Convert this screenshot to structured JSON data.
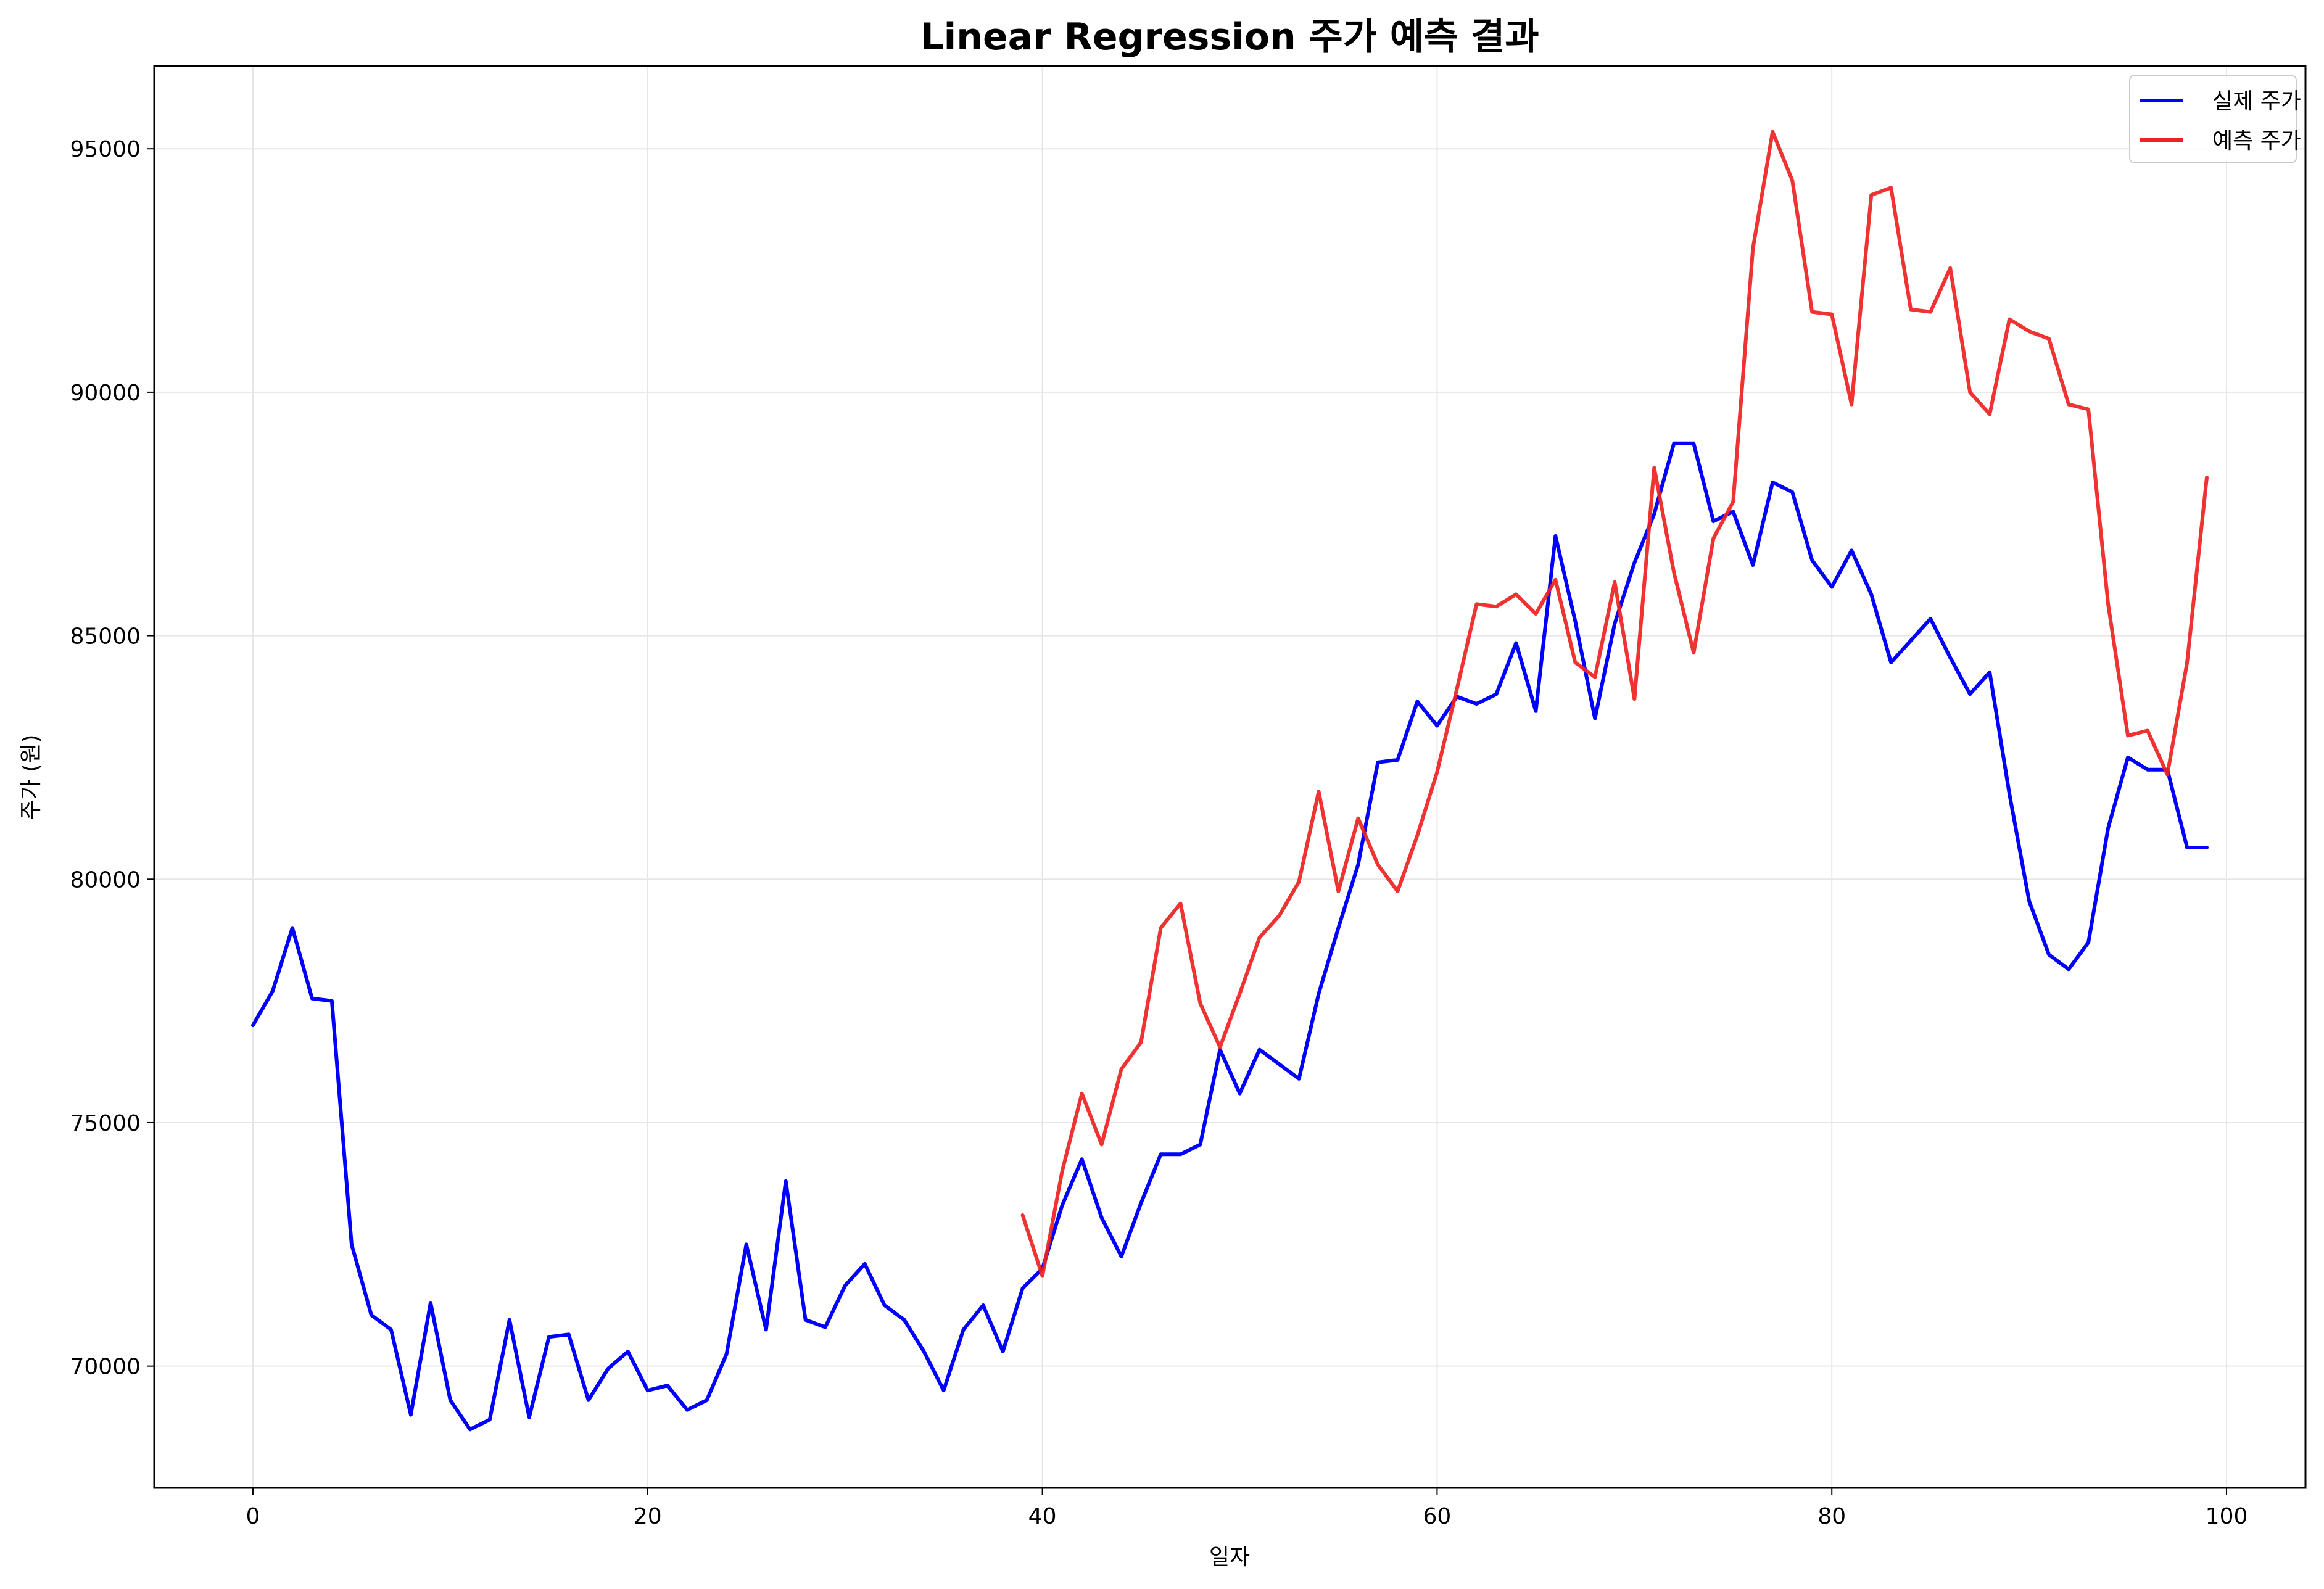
{
  "chart_data": {
    "type": "line",
    "title": "Linear Regression 주가 예측 결과",
    "xlabel": "일자",
    "ylabel": "주가 (원)",
    "xlim": [
      -5,
      104
    ],
    "ylim": [
      67500,
      96700
    ],
    "xticks": [
      "0",
      "20",
      "40",
      "60",
      "80",
      "100"
    ],
    "yticks": [
      "70000",
      "75000",
      "80000",
      "85000",
      "90000",
      "95000"
    ],
    "grid": true,
    "legend_position": "top-right",
    "series": [
      {
        "name": "실제 주가",
        "color": "#0000ff",
        "x_start": 0,
        "values": [
          77000,
          77700,
          79000,
          77550,
          77500,
          72500,
          71050,
          70750,
          69000,
          71300,
          69300,
          68700,
          68900,
          70950,
          68950,
          70600,
          70650,
          69300,
          69950,
          70300,
          69500,
          69600,
          69100,
          69300,
          70250,
          72500,
          70750,
          73800,
          70950,
          70800,
          71650,
          72100,
          71250,
          70950,
          70300,
          69500,
          70750,
          71250,
          70300,
          71600,
          72000,
          73300,
          74250,
          73050,
          72250,
          73350,
          74350,
          74350,
          74550,
          76500,
          75600,
          76500,
          76200,
          75900,
          77650,
          79000,
          80300,
          82400,
          82450,
          83650,
          83150,
          83750,
          83600,
          83800,
          84850,
          83450,
          87050,
          85300,
          83300,
          85250,
          86500,
          87500,
          88950,
          88950,
          87350,
          87550,
          86450,
          88150,
          87950,
          86550,
          86000,
          86750,
          85850,
          84450,
          84900,
          85350,
          84550,
          83800,
          84250,
          81750,
          79550,
          78450,
          78150,
          78700,
          81050,
          82500,
          82250,
          82250,
          80650,
          80650
        ]
      },
      {
        "name": "예측 주가",
        "color": "#ee2222",
        "x_start": 39,
        "values": [
          73100,
          71850,
          74000,
          75600,
          74550,
          76100,
          76650,
          79000,
          79500,
          77450,
          76550,
          77650,
          78800,
          79250,
          79950,
          81800,
          79750,
          81250,
          80300,
          79750,
          80900,
          82200,
          83900,
          85650,
          85600,
          85850,
          85450,
          86150,
          84450,
          84150,
          86100,
          83700,
          88450,
          86300,
          84650,
          87000,
          87750,
          92950,
          95350,
          94350,
          91650,
          91600,
          89750,
          94050,
          94200,
          91700,
          91650,
          92550,
          90000,
          89550,
          91500,
          91250,
          91100,
          89750,
          89650,
          85650,
          82950,
          83050,
          82150,
          84450,
          88250
        ]
      }
    ]
  }
}
